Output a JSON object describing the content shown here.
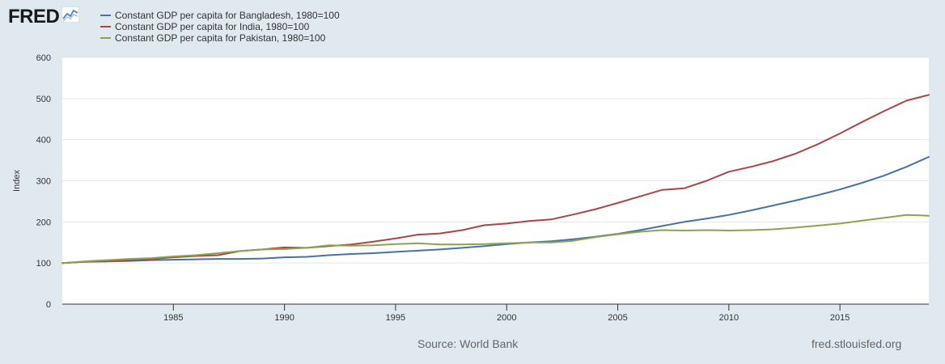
{
  "header": {
    "logo_text": "FRED",
    "logo_icon": "chart-line-icon"
  },
  "footer": {
    "source": "Source: World Bank",
    "url": "fred.stlouisfed.org"
  },
  "chart_data": {
    "type": "line",
    "ylabel": "Index",
    "xlim": [
      1980,
      2019
    ],
    "ylim": [
      0,
      600
    ],
    "yticks": [
      0,
      100,
      200,
      300,
      400,
      500,
      600
    ],
    "xticks": [
      1985,
      1990,
      1995,
      2000,
      2005,
      2010,
      2015
    ],
    "grid": true,
    "legend": "top-left",
    "x": [
      1980,
      1981,
      1982,
      1983,
      1984,
      1985,
      1986,
      1987,
      1988,
      1989,
      1990,
      1991,
      1992,
      1993,
      1994,
      1995,
      1996,
      1997,
      1998,
      1999,
      2000,
      2001,
      2002,
      2003,
      2004,
      2005,
      2006,
      2007,
      2008,
      2009,
      2010,
      2011,
      2012,
      2013,
      2014,
      2015,
      2016,
      2017,
      2018,
      2019
    ],
    "series": [
      {
        "name": "Constant GDP per capita for Bangladesh, 1980=100",
        "color": "#4572a7",
        "values": [
          100,
          103,
          104,
          105,
          107,
          108,
          109,
          110,
          110,
          111,
          114,
          115,
          119,
          122,
          124,
          127,
          130,
          133,
          137,
          141,
          146,
          150,
          153,
          158,
          164,
          171,
          180,
          190,
          200,
          208,
          217,
          228,
          240,
          252,
          265,
          279,
          295,
          313,
          334,
          358
        ]
      },
      {
        "name": "Constant GDP per capita for India, 1980=100",
        "color": "#aa4643",
        "values": [
          100,
          103,
          104,
          107,
          110,
          114,
          117,
          119,
          129,
          133,
          138,
          137,
          141,
          145,
          152,
          160,
          169,
          172,
          180,
          192,
          196,
          202,
          206,
          218,
          231,
          246,
          262,
          278,
          282,
          300,
          322,
          334,
          348,
          366,
          389,
          415,
          443,
          470,
          495,
          509
        ]
      },
      {
        "name": "Constant GDP per capita for Pakistan, 1980=100",
        "color": "#89a54e",
        "values": [
          100,
          104,
          107,
          110,
          112,
          116,
          119,
          124,
          129,
          133,
          134,
          137,
          143,
          142,
          143,
          146,
          148,
          145,
          145,
          146,
          148,
          150,
          150,
          154,
          163,
          170,
          176,
          180,
          179,
          180,
          179,
          180,
          182,
          186,
          191,
          196,
          203,
          210,
          217,
          215
        ]
      }
    ]
  }
}
